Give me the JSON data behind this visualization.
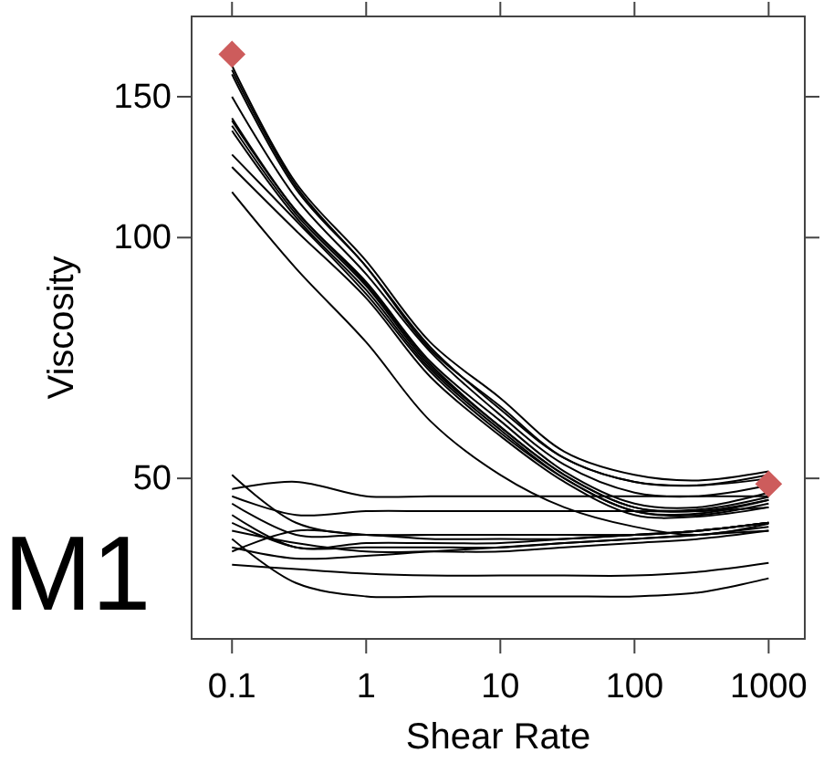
{
  "chart_data": {
    "type": "line",
    "xlabel": "Shear Rate",
    "ylabel": "Viscosity",
    "log": "xy",
    "grid": false,
    "marker": "none",
    "line_style": "solid",
    "annotations": [
      "M1"
    ],
    "xlim": [
      0.05,
      1860
    ],
    "xticks": [
      0.1,
      1,
      10,
      100,
      1000
    ],
    "ylim": [
      31.5,
      189
    ],
    "yticks": [
      50,
      100,
      150
    ],
    "x": [
      0.1,
      0.3,
      1,
      3,
      10,
      30,
      100,
      300,
      1000
    ],
    "series": [
      {
        "color": "#000000",
        "values": [
          164,
          117,
          93.5,
          74,
          63,
          54,
          50.5,
          49.7,
          51
        ]
      },
      {
        "color": "#000000",
        "values": [
          162,
          116,
          92,
          72.5,
          61.5,
          53,
          49.5,
          49,
          50.5
        ]
      },
      {
        "color": "#000000",
        "values": [
          160,
          115,
          92,
          73,
          61,
          53,
          49.5,
          49,
          50
        ]
      },
      {
        "color": "#000000",
        "values": [
          150,
          112,
          90,
          72,
          60,
          52,
          48,
          47.5,
          49
        ]
      },
      {
        "color": "#000000",
        "values": [
          141,
          108,
          88,
          70,
          59,
          51,
          46.5,
          46,
          48
        ]
      },
      {
        "color": "#000000",
        "values": [
          140,
          108,
          87.5,
          69.5,
          58,
          50.5,
          46,
          45.5,
          47
        ]
      },
      {
        "color": "#000000",
        "values": [
          138,
          107,
          87,
          69,
          58,
          50.5,
          46,
          45.7,
          47.4
        ]
      },
      {
        "color": "#000000",
        "values": [
          136,
          106,
          86,
          68.5,
          57.5,
          50,
          45.5,
          45.2,
          47
        ]
      },
      {
        "color": "#000000",
        "values": [
          127,
          105,
          85,
          68,
          57,
          50,
          45.5,
          45,
          46.5
        ]
      },
      {
        "color": "#000000",
        "values": [
          122.5,
          102,
          84,
          67,
          56.5,
          49.5,
          45,
          44.8,
          46
        ]
      },
      {
        "color": "#000000",
        "values": [
          114,
          91.5,
          74,
          59,
          50.5,
          46,
          43.5,
          42.5,
          43.9
        ]
      },
      {
        "color": "#000000",
        "values": [
          50.5,
          44,
          42.5,
          42.5,
          42.5,
          42.5,
          42.5,
          43,
          44
        ]
      },
      {
        "color": "#000000",
        "values": [
          48.5,
          49.5,
          47.5,
          47.5,
          47.5,
          47.5,
          47.5,
          47.5,
          47.5
        ]
      },
      {
        "color": "#000000",
        "values": [
          47.5,
          45,
          45.5,
          45.5,
          45.5,
          45.5,
          45.5,
          45.5,
          46
        ]
      },
      {
        "color": "#000000",
        "values": [
          46.5,
          42.5,
          42.5,
          42,
          42,
          42,
          42.5,
          43,
          44
        ]
      },
      {
        "color": "#000000",
        "values": [
          45,
          41,
          41.5,
          41.5,
          41.5,
          42,
          42.5,
          43,
          44
        ]
      },
      {
        "color": "#000000",
        "values": [
          44,
          41,
          41,
          41,
          41,
          41.5,
          42,
          42.5,
          43.5
        ]
      },
      {
        "color": "#000000",
        "values": [
          43,
          41.5,
          40.5,
          40.5,
          40.5,
          41,
          41.5,
          42,
          43
        ]
      },
      {
        "color": "#000000",
        "values": [
          41,
          39.7,
          40,
          40.5,
          41,
          41.5,
          42,
          42.5,
          43
        ]
      },
      {
        "color": "#000000",
        "values": [
          40.5,
          43,
          42.5,
          42.5,
          42.5,
          42.5,
          42.5,
          43,
          44
        ]
      },
      {
        "color": "#000000",
        "values": [
          39,
          38.5,
          38,
          37.8,
          37.8,
          37.8,
          37.8,
          38.2,
          39.2
        ]
      },
      {
        "color": "#000000",
        "values": [
          42,
          37,
          35.6,
          35.6,
          35.6,
          35.6,
          35.6,
          36,
          37.5
        ]
      },
      {
        "type": "scatter",
        "marker": "diamond",
        "color": "#cd5c5c",
        "x": [
          0.1,
          1000
        ],
        "values": [
          169.5,
          49.2
        ]
      }
    ]
  }
}
